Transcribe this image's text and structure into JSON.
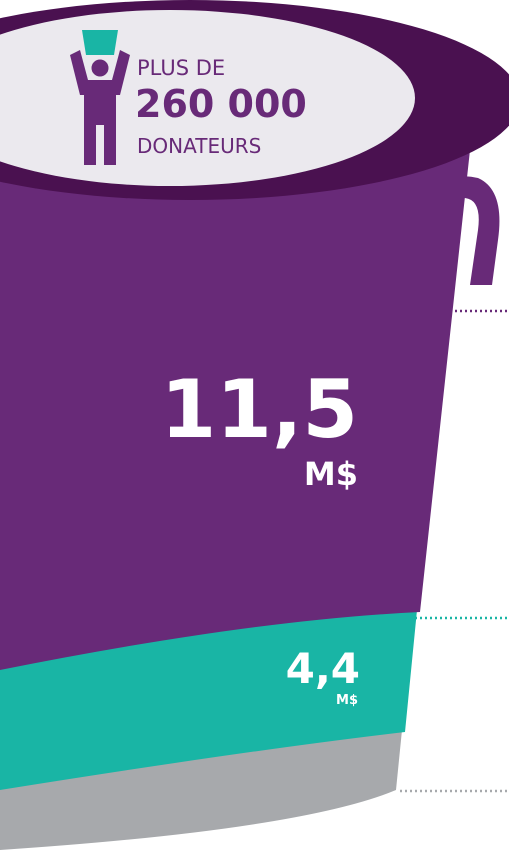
{
  "header": {
    "prefix": "PLUS DE",
    "count": "260 000",
    "suffix": "DONATEURS"
  },
  "segments": [
    {
      "amount": "11,5",
      "unit": "M$"
    },
    {
      "amount": "4,4",
      "unit": "M$"
    }
  ]
}
